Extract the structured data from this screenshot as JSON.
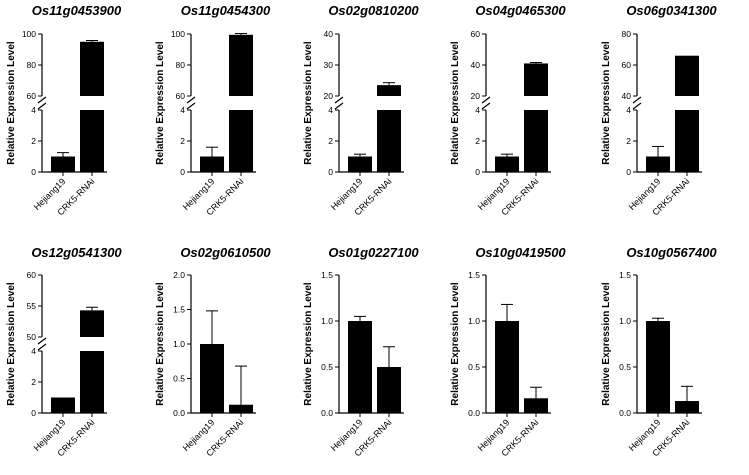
{
  "chart_data": [
    {
      "type": "bar",
      "title": "Os11g0453900",
      "ylabel": "Relative Expression Level",
      "categories": [
        "Hejiang19",
        "CRK5-RNAi"
      ],
      "values": [
        1.0,
        95.0
      ],
      "errors": [
        0.25,
        0.8
      ],
      "axis_break": {
        "lower": [
          0,
          4
        ],
        "upper": [
          60,
          100
        ]
      },
      "yticks_lower": [
        "0",
        "2",
        "4"
      ],
      "yticks_upper": [
        "60",
        "80",
        "100"
      ]
    },
    {
      "type": "bar",
      "title": "Os11g0454300",
      "ylabel": "Relative Expression Level",
      "categories": [
        "Hejiang19",
        "CRK5-RNAi"
      ],
      "values": [
        1.0,
        99.5
      ],
      "errors": [
        0.6,
        0.8
      ],
      "axis_break": {
        "lower": [
          0,
          4
        ],
        "upper": [
          60,
          100
        ]
      },
      "yticks_lower": [
        "0",
        "2",
        "4"
      ],
      "yticks_upper": [
        "60",
        "80",
        "100"
      ]
    },
    {
      "type": "bar",
      "title": "Os02g0810200",
      "ylabel": "Relative Expression Level",
      "categories": [
        "Hejiang19",
        "CRK5-RNAi"
      ],
      "values": [
        1.0,
        23.5
      ],
      "errors": [
        0.15,
        0.8
      ],
      "axis_break": {
        "lower": [
          0,
          4
        ],
        "upper": [
          20,
          40
        ]
      },
      "yticks_lower": [
        "0",
        "2",
        "4"
      ],
      "yticks_upper": [
        "20",
        "30",
        "40"
      ]
    },
    {
      "type": "bar",
      "title": "Os04g0465300",
      "ylabel": "Relative Expression Level",
      "categories": [
        "Hejiang19",
        "CRK5-RNAi"
      ],
      "values": [
        1.0,
        41.0
      ],
      "errors": [
        0.15,
        0.6
      ],
      "axis_break": {
        "lower": [
          0,
          4
        ],
        "upper": [
          20,
          60
        ]
      },
      "yticks_lower": [
        "0",
        "2",
        "4"
      ],
      "yticks_upper": [
        "20",
        "40",
        "60"
      ]
    },
    {
      "type": "bar",
      "title": "Os06g0341300",
      "ylabel": "Relative Expression Level",
      "categories": [
        "Hejiang19",
        "CRK5-RNAi"
      ],
      "values": [
        1.0,
        66.0
      ],
      "errors": [
        0.65,
        0
      ],
      "axis_break": {
        "lower": [
          0,
          4
        ],
        "upper": [
          40,
          80
        ]
      },
      "yticks_lower": [
        "0",
        "2",
        "4"
      ],
      "yticks_upper": [
        "40",
        "60",
        "80"
      ]
    },
    {
      "type": "bar",
      "title": "Os12g0541300",
      "ylabel": "Relative Expression Level",
      "categories": [
        "Hejiang19",
        "CRK5-RNAi"
      ],
      "values": [
        1.0,
        54.3
      ],
      "errors": [
        0,
        0.5
      ],
      "axis_break": {
        "lower": [
          0,
          4
        ],
        "upper": [
          50,
          60
        ]
      },
      "yticks_lower": [
        "0",
        "2",
        "4"
      ],
      "yticks_upper": [
        "50",
        "55",
        "60"
      ]
    },
    {
      "type": "bar",
      "title": "Os02g0610500",
      "ylabel": "Relative Expression Level",
      "categories": [
        "Hejiang19",
        "CRK5-RNAi"
      ],
      "values": [
        1.0,
        0.12
      ],
      "errors": [
        0.48,
        0.56
      ],
      "ylim": [
        0,
        2.0
      ],
      "yticks": [
        "0.0",
        "0.5",
        "1.0",
        "1.5",
        "2.0"
      ]
    },
    {
      "type": "bar",
      "title": "Os01g0227100",
      "ylabel": "Relative Expression Level",
      "categories": [
        "Hejiang19",
        "CRK5-RNAi"
      ],
      "values": [
        1.0,
        0.5
      ],
      "errors": [
        0.05,
        0.22
      ],
      "ylim": [
        0,
        1.5
      ],
      "yticks": [
        "0.0",
        "0.5",
        "1.0",
        "1.5"
      ]
    },
    {
      "type": "bar",
      "title": "Os10g0419500",
      "ylabel": "Relative Expression Level",
      "categories": [
        "Hejiang19",
        "CRK5-RNAi"
      ],
      "values": [
        1.0,
        0.16
      ],
      "errors": [
        0.18,
        0.12
      ],
      "ylim": [
        0,
        1.5
      ],
      "yticks": [
        "0.0",
        "0.5",
        "1.0",
        "1.5"
      ]
    },
    {
      "type": "bar",
      "title": "Os10g0567400",
      "ylabel": "Relative Expression Level",
      "categories": [
        "Hejiang19",
        "CRK5-RNAi"
      ],
      "values": [
        1.0,
        0.13
      ],
      "errors": [
        0.03,
        0.16
      ],
      "ylim": [
        0,
        1.5
      ],
      "yticks": [
        "0.0",
        "0.5",
        "1.0",
        "1.5"
      ]
    }
  ]
}
